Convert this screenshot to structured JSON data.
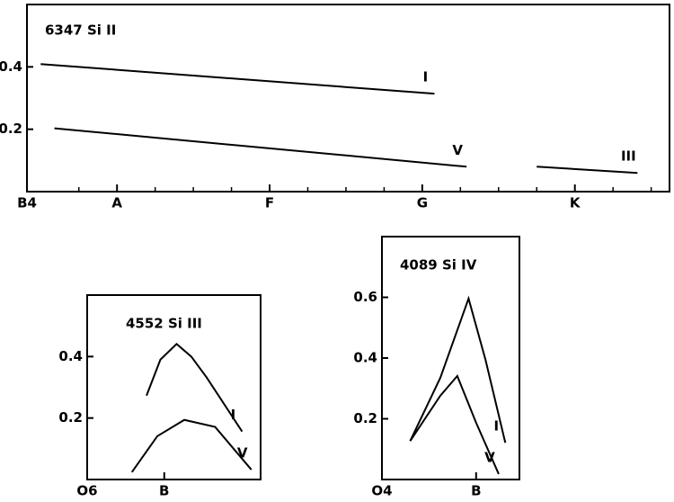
{
  "chart_data": [
    {
      "type": "line",
      "title": "6347  Si II",
      "xlim": [
        -0.59,
        3.62
      ],
      "ylim": [
        0,
        0.6
      ],
      "xticks": [
        {
          "value": -0.59,
          "label": "B4"
        },
        {
          "value": 0,
          "label": "A"
        },
        {
          "value": 1,
          "label": "F"
        },
        {
          "value": 2,
          "label": "G"
        },
        {
          "value": 3,
          "label": "K"
        }
      ],
      "minor_xticks": [
        -0.25,
        0.25,
        0.5,
        0.75,
        1.25,
        1.5,
        1.75,
        2.25,
        2.5,
        2.75,
        3.25,
        3.5
      ],
      "yticks": [
        0.2,
        0.4
      ],
      "series": [
        {
          "name": "I",
          "color": "#000000",
          "x": [
            -0.5,
            2.08
          ],
          "values": [
            0.409,
            0.314
          ]
        },
        {
          "name": "V",
          "color": "#000000",
          "x": [
            -0.41,
            2.29
          ],
          "values": [
            0.203,
            0.08
          ]
        },
        {
          "name": "III",
          "color": "#000000",
          "x": [
            2.75,
            3.41
          ],
          "values": [
            0.08,
            0.06
          ]
        }
      ]
    },
    {
      "type": "line",
      "title": "4552  Si III",
      "xlim": [
        0,
        2.25
      ],
      "ylim": [
        0,
        0.6
      ],
      "xticks": [
        {
          "value": 0,
          "label": "O6"
        },
        {
          "value": 1,
          "label": "B"
        }
      ],
      "minor_xticks": [],
      "yticks": [
        0.2,
        0.4
      ],
      "series": [
        {
          "name": "I",
          "color": "#000000",
          "x": [
            0.77,
            0.95,
            1.16,
            1.35,
            1.55,
            2.01
          ],
          "values": [
            0.273,
            0.39,
            0.441,
            0.4,
            0.332,
            0.156
          ]
        },
        {
          "name": "V",
          "color": "#000000",
          "x": [
            0.58,
            0.91,
            1.26,
            1.66,
            2.13
          ],
          "values": [
            0.024,
            0.141,
            0.194,
            0.171,
            0.032
          ]
        }
      ]
    },
    {
      "type": "line",
      "title": "4089  Si IV",
      "xlim": [
        0,
        1.46
      ],
      "ylim": [
        0,
        0.8
      ],
      "xticks": [
        {
          "value": 0,
          "label": "O4"
        },
        {
          "value": 1,
          "label": "B"
        }
      ],
      "minor_xticks": [],
      "yticks": [
        0.2,
        0.4,
        0.6
      ],
      "series": [
        {
          "name": "I",
          "color": "#000000",
          "x": [
            0.3,
            0.62,
            0.92,
            1.1,
            1.31
          ],
          "values": [
            0.127,
            0.335,
            0.596,
            0.394,
            0.121
          ]
        },
        {
          "name": "V",
          "color": "#000000",
          "x": [
            0.3,
            0.62,
            0.8,
            1.0,
            1.24
          ],
          "values": [
            0.127,
            0.276,
            0.341,
            0.187,
            0.018
          ]
        }
      ]
    }
  ]
}
